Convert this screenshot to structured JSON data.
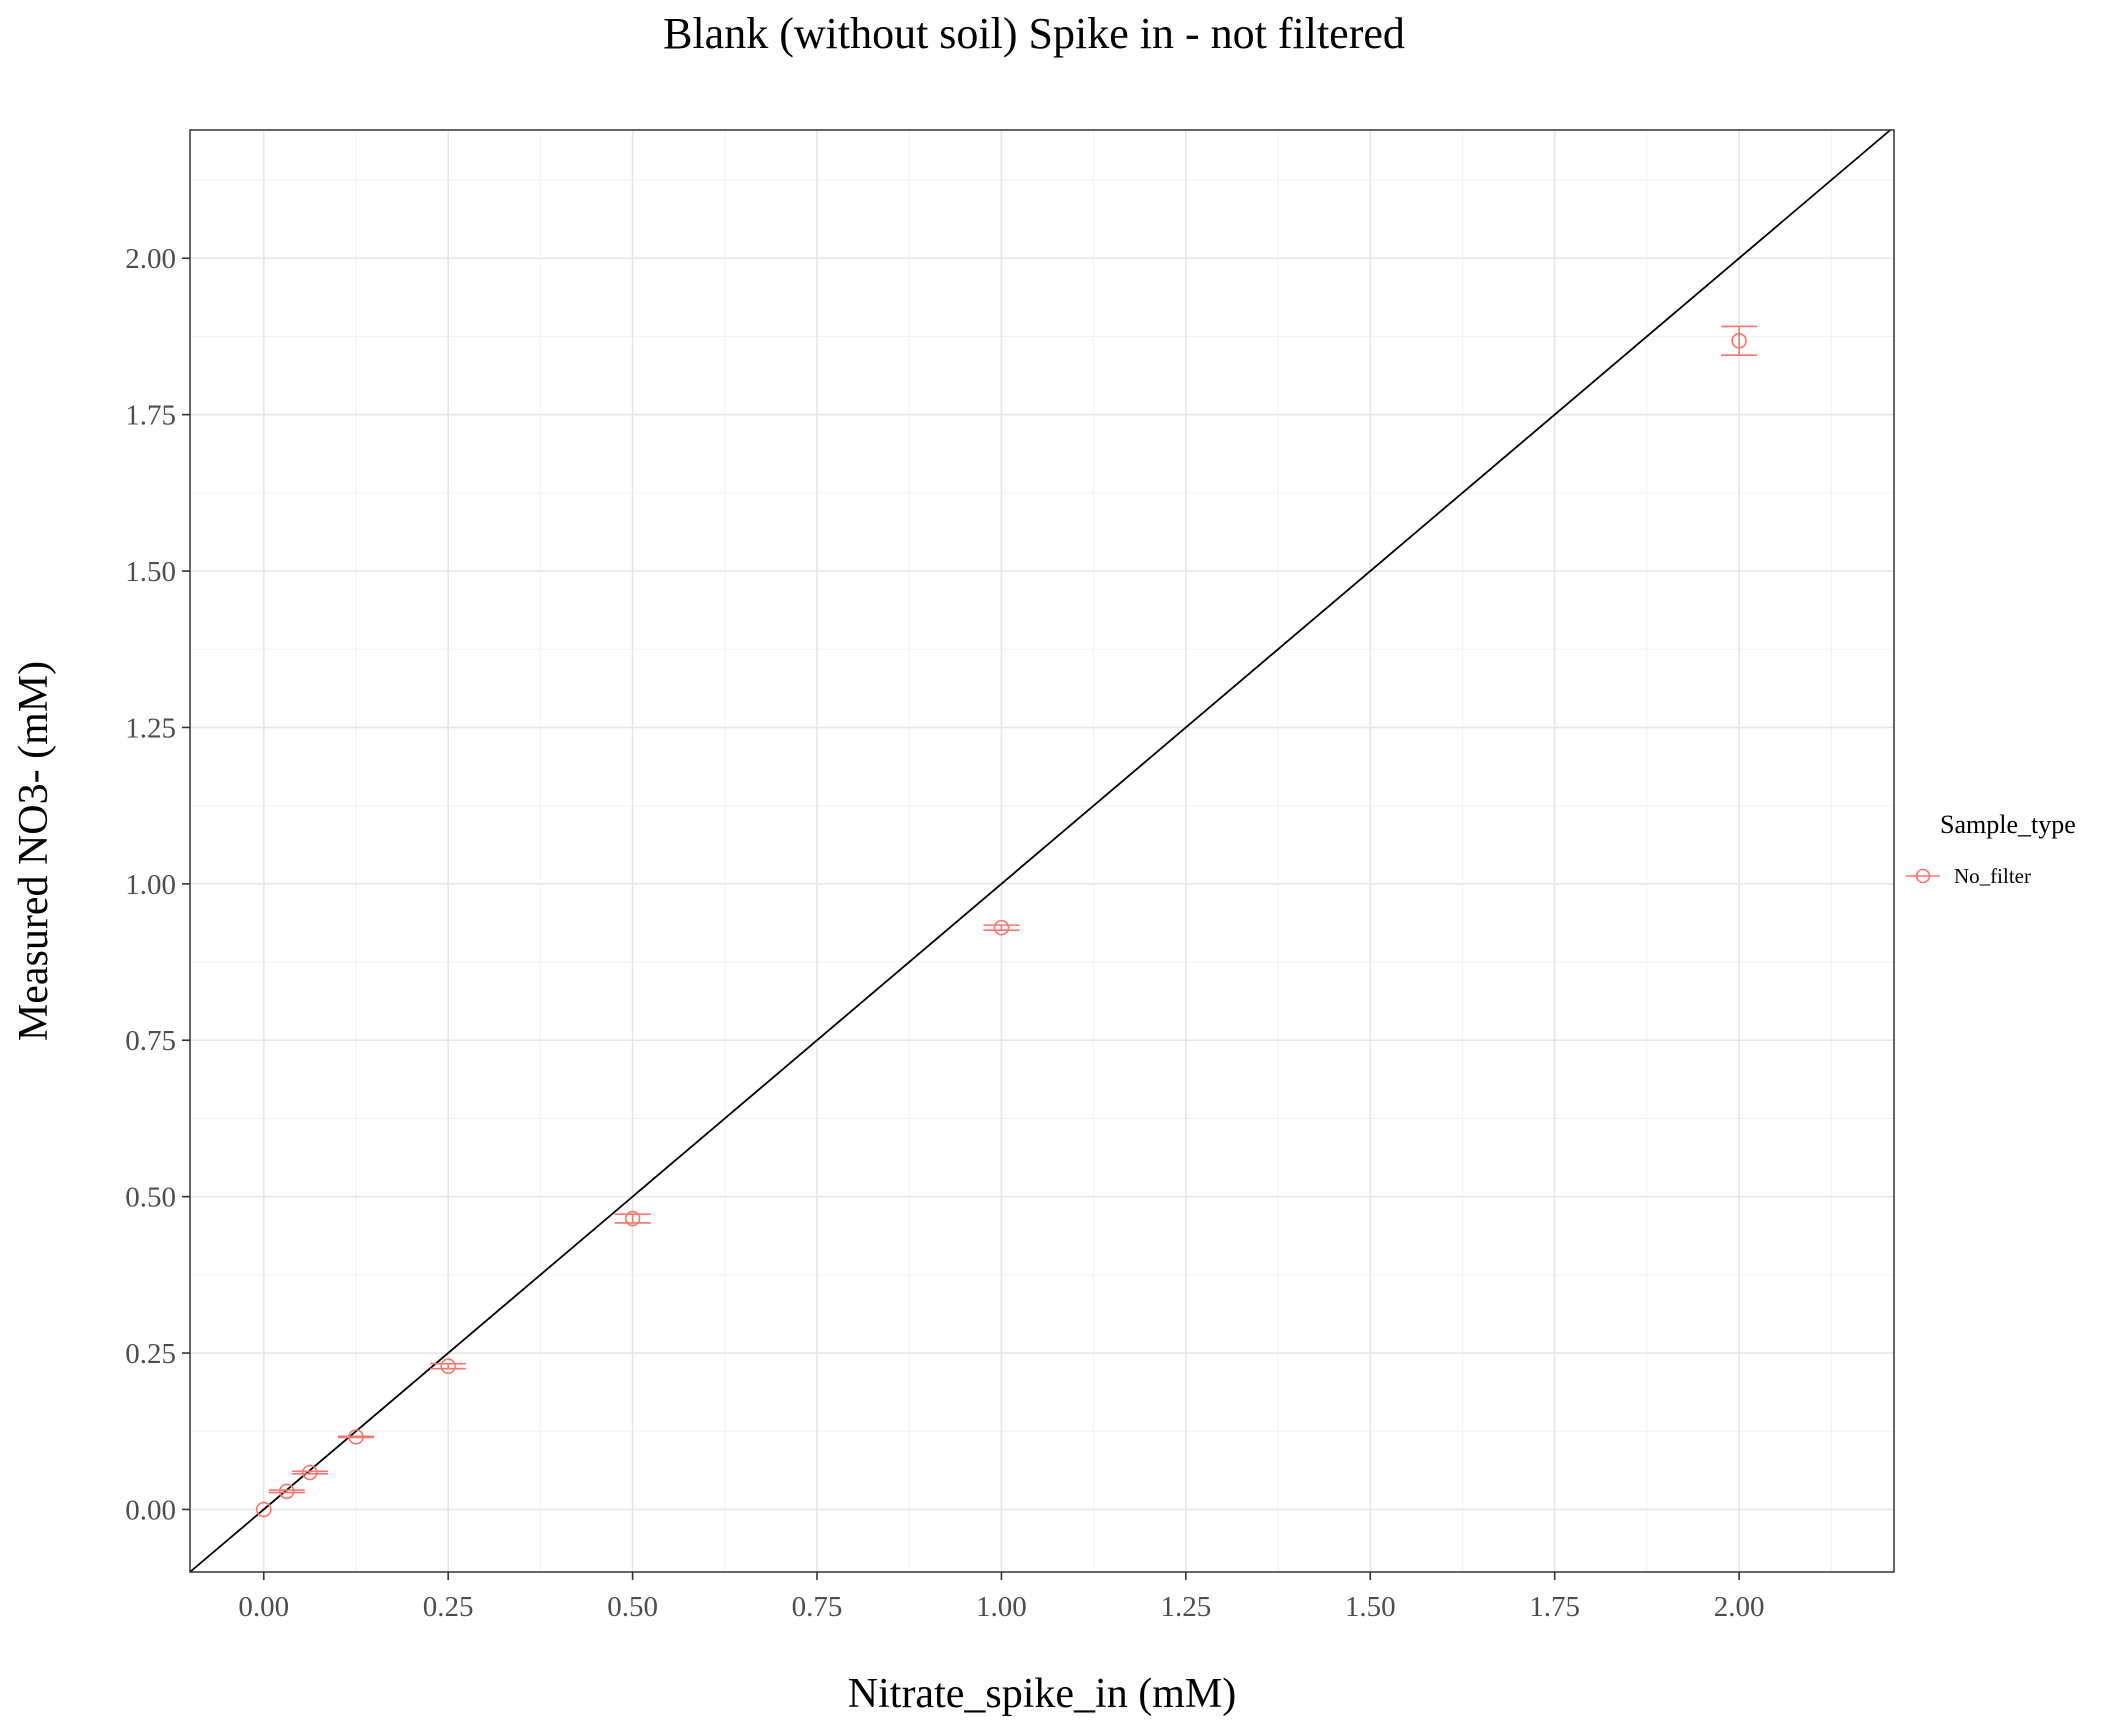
{
  "chart_data": {
    "type": "scatter",
    "title": "Blank (without soil) Spike in - not filtered",
    "xlabel": "Nitrate_spike_in (mM)",
    "ylabel": "Measured NO3- (mM)",
    "xlim": [
      -0.1,
      2.21
    ],
    "ylim": [
      -0.1,
      2.205
    ],
    "x_ticks": [
      0.0,
      0.25,
      0.5,
      0.75,
      1.0,
      1.25,
      1.5,
      1.75,
      2.0
    ],
    "x_tick_labels": [
      "0.00",
      "0.25",
      "0.50",
      "0.75",
      "1.00",
      "1.25",
      "1.50",
      "1.75",
      "2.00"
    ],
    "y_ticks": [
      0.0,
      0.25,
      0.5,
      0.75,
      1.0,
      1.25,
      1.5,
      1.75,
      2.0
    ],
    "y_tick_labels": [
      "0.00",
      "0.25",
      "0.50",
      "0.75",
      "1.00",
      "1.25",
      "1.50",
      "1.75",
      "2.00"
    ],
    "grid": true,
    "legend": {
      "title": "Sample_type",
      "position": "right"
    },
    "reference_line": {
      "slope": 1,
      "intercept": 0,
      "color": "#000000"
    },
    "series": [
      {
        "name": "No_filter",
        "color": "#F8766D",
        "points": [
          {
            "x": 0.0,
            "y": 0.0,
            "ymin": 0.0,
            "ymax": 0.0
          },
          {
            "x": 0.03125,
            "y": 0.029,
            "ymin": 0.027,
            "ymax": 0.031
          },
          {
            "x": 0.0625,
            "y": 0.059,
            "ymin": 0.057,
            "ymax": 0.061
          },
          {
            "x": 0.125,
            "y": 0.116,
            "ymin": 0.115,
            "ymax": 0.117
          },
          {
            "x": 0.25,
            "y": 0.229,
            "ymin": 0.225,
            "ymax": 0.233
          },
          {
            "x": 0.5,
            "y": 0.465,
            "ymin": 0.458,
            "ymax": 0.472
          },
          {
            "x": 1.0,
            "y": 0.93,
            "ymin": 0.926,
            "ymax": 0.934
          },
          {
            "x": 2.0,
            "y": 1.868,
            "ymin": 1.845,
            "ymax": 1.891
          }
        ]
      }
    ]
  }
}
